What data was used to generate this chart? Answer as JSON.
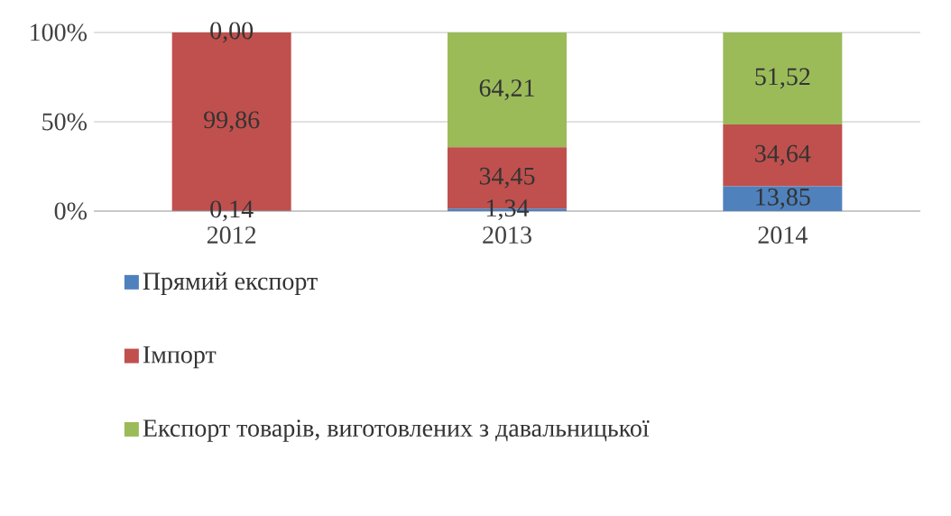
{
  "chart_data": {
    "type": "bar",
    "stacked": true,
    "categories": [
      "2012",
      "2013",
      "2014"
    ],
    "ylim": [
      0,
      100
    ],
    "yticks": [
      {
        "value": 0,
        "label": "0%"
      },
      {
        "value": 50,
        "label": "50%"
      },
      {
        "value": 100,
        "label": "100%"
      }
    ],
    "grid": "y",
    "legend": "bottom",
    "series": [
      {
        "name": "Прямий експорт",
        "color": "#4f81bd",
        "values": [
          0.14,
          1.34,
          13.85
        ],
        "value_labels": [
          "0,14",
          "1,34",
          "13,85"
        ]
      },
      {
        "name": "Імпорт",
        "color": "#c0504d",
        "values": [
          99.86,
          34.45,
          34.64
        ],
        "value_labels": [
          "99,86",
          "34,45",
          "34,64"
        ]
      },
      {
        "name": "Експорт товарів, виготовлених з давальницької",
        "color": "#9bbb59",
        "values": [
          0.0,
          64.21,
          51.52
        ],
        "value_labels": [
          "0,00",
          "64,21",
          "51,52"
        ]
      }
    ]
  }
}
